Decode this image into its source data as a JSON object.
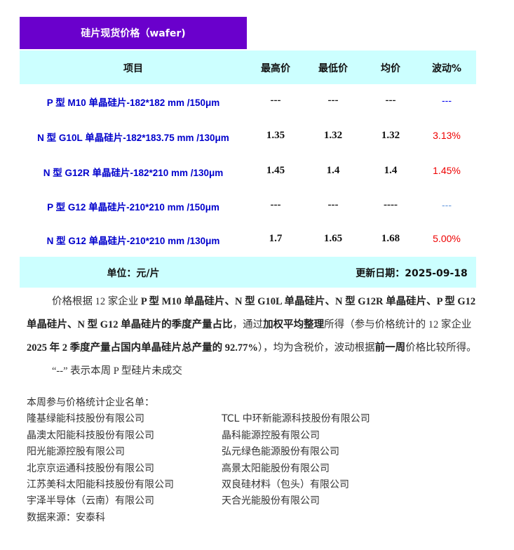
{
  "title": "硅片现货价格（wafer)",
  "headers": [
    "项目",
    "最高价",
    "最低价",
    "均价",
    "波动%"
  ],
  "rows": [
    {
      "item": "P 型 M10 单晶硅片-182*182 mm /150μm",
      "high": "---",
      "low": "---",
      "avg": "---",
      "change": "---",
      "change_color": "#0000ee"
    },
    {
      "item": "N 型 G10L 单晶硅片-182*183.75 mm /130μm",
      "high": "1.35",
      "low": "1.32",
      "avg": "1.32",
      "change": "3.13%",
      "change_color": "#ee0000"
    },
    {
      "item": "N 型 G12R 单晶硅片-182*210 mm /130μm",
      "high": "1.45",
      "low": "1.4",
      "avg": "1.4",
      "change": "1.45%",
      "change_color": "#ee0000"
    },
    {
      "item": "P 型 G12 单晶硅片-210*210 mm /150μm",
      "high": "---",
      "low": "---",
      "avg": "----",
      "change": "---",
      "change_color": "#6699dd"
    },
    {
      "item": "N 型 G12 单晶硅片-210*210 mm /130μm",
      "high": "1.7",
      "low": "1.65",
      "avg": "1.68",
      "change": "5.00%",
      "change_color": "#ee0000"
    }
  ],
  "footer": {
    "unit": "单位：元/片",
    "date": "更新日期：2025-09-18"
  },
  "paragraph": {
    "p1": "价格根据 12 家企业 ",
    "b1": "P 型 M10 单晶硅片、N 型 G10L 单晶硅片、N 型 G12R 单晶硅片、P 型 G12 单晶硅片、N 型 G12 单晶硅片的季度产量占比",
    "p2": "，通过",
    "b2": "加权平均整理",
    "p3": "所得（参与价格统计的 12 家企业 ",
    "b3": "2025 年 2 季度产量占国内单晶硅片总产量的 92.77%",
    "p4": "），均为含税价，波动根据",
    "b4": "前一周",
    "p5": "价格比较所得。"
  },
  "note": "“--” 表示本周 P 型硅片未成交",
  "list_title": "本周参与价格统计企业名单：",
  "companies_left": [
    "隆基绿能科技股份有限公司",
    "晶澳太阳能科技股份有限公司",
    "阳光能源控股有限公司",
    "北京京运通科技股份有限公司",
    "江苏美科太阳能科技股份有限公司",
    "宇泽半导体（云南）有限公司"
  ],
  "companies_right": [
    "TCL 中环新能源科技股份有限公司",
    "晶科能源控股有限公司",
    "弘元绿色能源股份有限公司",
    "高景太阳能股份有限公司",
    "双良硅材料（包头）有限公司",
    "天合光能股份有限公司"
  ],
  "source": "数据来源：安泰科"
}
